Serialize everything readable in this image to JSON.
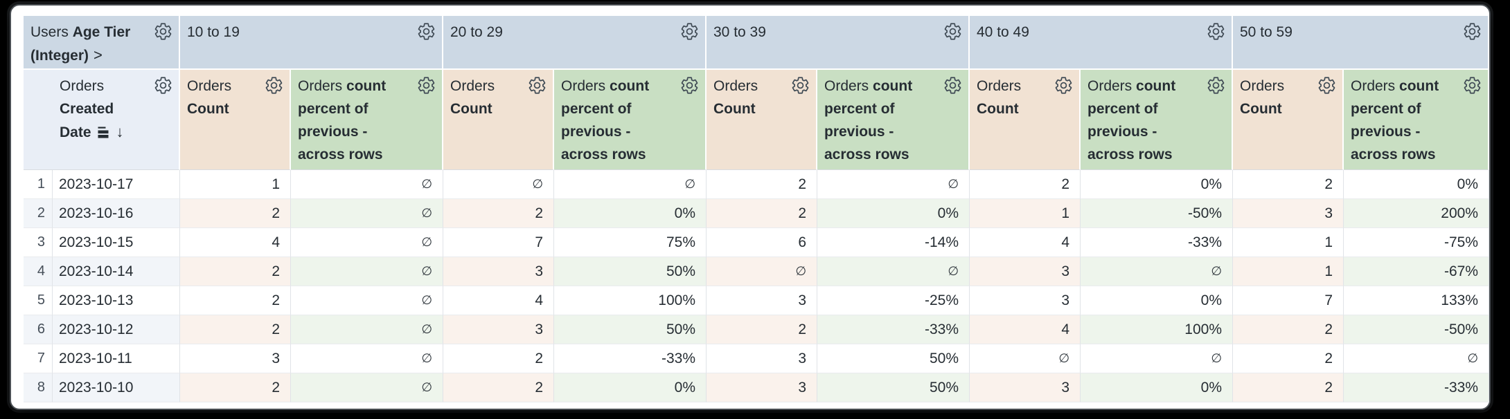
{
  "table": {
    "corner": {
      "view": "Users",
      "field": "Age Tier (Integer)",
      "expand_chevron": ">"
    },
    "row_field": {
      "view": "Orders",
      "field": "Created Date",
      "sort_arrow": "↓"
    },
    "pivot_values": [
      "10 to 19",
      "20 to 29",
      "30 to 39",
      "40 to 49",
      "50 to 59"
    ],
    "measures": [
      {
        "view": "Orders",
        "field": "Count"
      },
      {
        "view": "Orders",
        "field": "count percent of previous - across rows"
      }
    ],
    "null_symbol": "∅",
    "rows": [
      {
        "index": "1",
        "date": "2023-10-17",
        "cells": [
          "1",
          "∅",
          "∅",
          "∅",
          "2",
          "∅",
          "2",
          "0%",
          "2",
          "0%"
        ]
      },
      {
        "index": "2",
        "date": "2023-10-16",
        "cells": [
          "2",
          "∅",
          "2",
          "0%",
          "2",
          "0%",
          "1",
          "-50%",
          "3",
          "200%"
        ]
      },
      {
        "index": "3",
        "date": "2023-10-15",
        "cells": [
          "4",
          "∅",
          "7",
          "75%",
          "6",
          "-14%",
          "4",
          "-33%",
          "1",
          "-75%"
        ]
      },
      {
        "index": "4",
        "date": "2023-10-14",
        "cells": [
          "2",
          "∅",
          "3",
          "50%",
          "∅",
          "∅",
          "3",
          "∅",
          "1",
          "-67%"
        ]
      },
      {
        "index": "5",
        "date": "2023-10-13",
        "cells": [
          "2",
          "∅",
          "4",
          "100%",
          "3",
          "-25%",
          "3",
          "0%",
          "7",
          "133%"
        ]
      },
      {
        "index": "6",
        "date": "2023-10-12",
        "cells": [
          "2",
          "∅",
          "3",
          "50%",
          "2",
          "-33%",
          "4",
          "100%",
          "2",
          "-50%"
        ]
      },
      {
        "index": "7",
        "date": "2023-10-11",
        "cells": [
          "3",
          "∅",
          "2",
          "-33%",
          "3",
          "50%",
          "∅",
          "∅",
          "2",
          "∅"
        ]
      },
      {
        "index": "8",
        "date": "2023-10-10",
        "cells": [
          "2",
          "∅",
          "2",
          "0%",
          "3",
          "50%",
          "3",
          "0%",
          "2",
          "-33%"
        ]
      }
    ],
    "colors": {
      "pivot_header": "#ccd8e4",
      "dimension_header": "#e9eef6",
      "count_header": "#f1e2d3",
      "percent_header": "#c9dfc3",
      "dimension_stripe": "#f2f5f9",
      "count_stripe": "#faf2ec",
      "percent_stripe": "#eef5ec",
      "text": "#262d33"
    }
  }
}
